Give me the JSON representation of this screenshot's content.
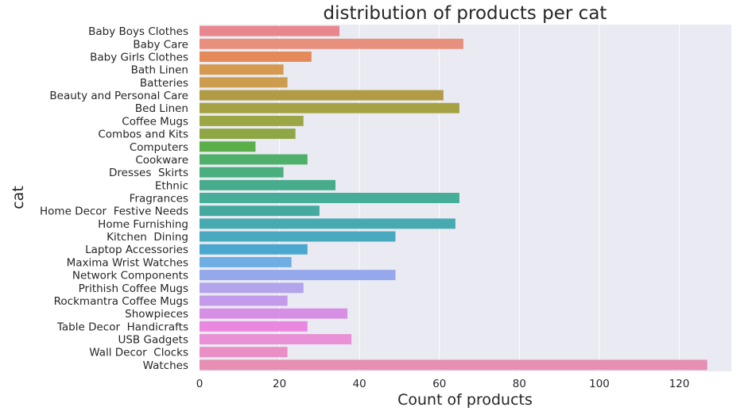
{
  "chart_data": {
    "type": "bar",
    "orientation": "horizontal",
    "title": "distribution of products per cat",
    "xlabel": "Count of products",
    "ylabel": "cat",
    "xlim": [
      0,
      133
    ],
    "xticks": [
      0,
      20,
      40,
      60,
      80,
      100,
      120
    ],
    "grid": true,
    "categories": [
      "Baby Boys Clothes",
      "Baby Care",
      "Baby Girls Clothes",
      "Bath Linen",
      "Batteries",
      "Beauty and Personal Care",
      "Bed Linen",
      "Coffee Mugs",
      "Combos and Kits",
      "Computers",
      "Cookware",
      "Dresses  Skirts",
      "Ethnic",
      "Fragrances",
      "Home Decor  Festive Needs",
      "Home Furnishing",
      "Kitchen  Dining",
      "Laptop Accessories",
      "Maxima Wrist Watches",
      "Network Components",
      "Prithish Coffee Mugs",
      "Rockmantra Coffee Mugs",
      "Showpieces",
      "Table Decor  Handicrafts",
      "USB Gadgets",
      "Wall Decor  Clocks",
      "Watches"
    ],
    "values": [
      35,
      66,
      28,
      21,
      22,
      61,
      65,
      26,
      24,
      14,
      27,
      21,
      34,
      65,
      30,
      64,
      49,
      27,
      23,
      49,
      26,
      22,
      37,
      27,
      38,
      22,
      127
    ],
    "colors": [
      "#e9878f",
      "#e8907e",
      "#e4895a",
      "#d5994f",
      "#cc9d4f",
      "#b19c45",
      "#a5a244",
      "#9ca644",
      "#8ea744",
      "#5aaf48",
      "#4eb06a",
      "#4aae7e",
      "#47ac8c",
      "#45ad98",
      "#44aaa0",
      "#46aab0",
      "#48a9bf",
      "#4aa8d0",
      "#6eaee2",
      "#95a8ec",
      "#b4a4ec",
      "#c39bea",
      "#d78fe6",
      "#ea87e0",
      "#e991d6",
      "#e98fc6",
      "#e68fb2"
    ]
  }
}
